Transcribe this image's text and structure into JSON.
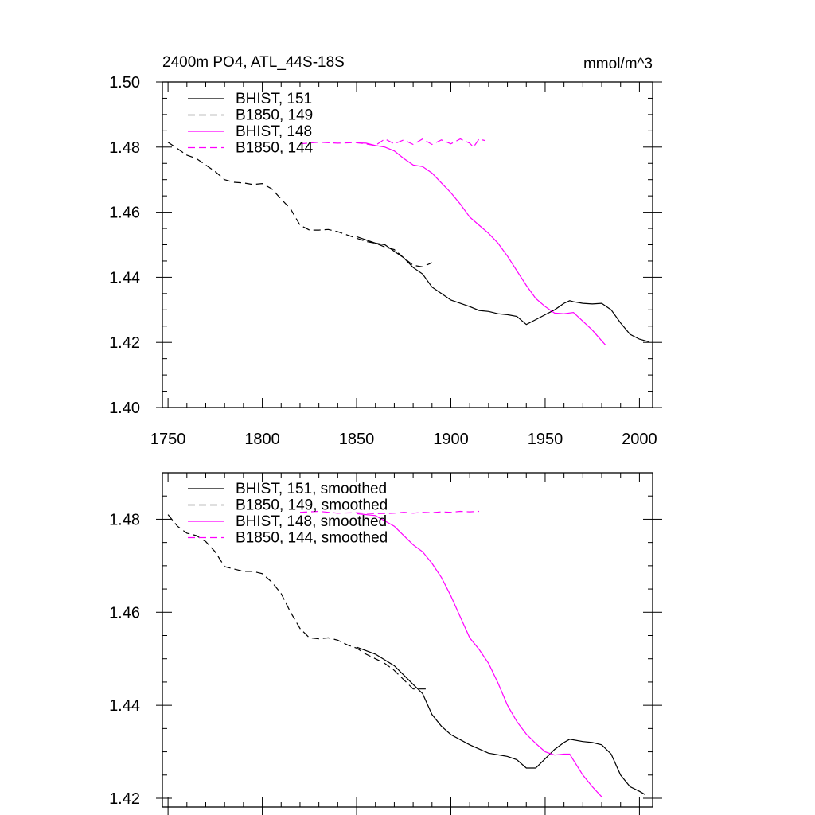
{
  "chart_data": [
    {
      "type": "line",
      "title": "2400m PO4, ATL_44S-18S",
      "units": "mmol/m^3",
      "xlim": [
        1747,
        2007
      ],
      "ylim": [
        1.4,
        1.5
      ],
      "x_ticks": [
        "1750",
        "1800",
        "1850",
        "1900",
        "1950",
        "2000"
      ],
      "y_ticks": [
        "1.40",
        "1.42",
        "1.44",
        "1.46",
        "1.48",
        "1.50"
      ],
      "legend_position": "top-left",
      "series": [
        {
          "name": "BHIST, 151",
          "color": "#000000",
          "dash": "solid",
          "x": [
            1850,
            1855,
            1860,
            1865,
            1870,
            1875,
            1880,
            1885,
            1890,
            1895,
            1900,
            1905,
            1910,
            1915,
            1920,
            1925,
            1930,
            1935,
            1940,
            1945,
            1950,
            1955,
            1960,
            1963,
            1965,
            1970,
            1975,
            1980,
            1985,
            1990,
            1995,
            2000,
            2005
          ],
          "y": [
            1.4525,
            1.4515,
            1.4505,
            1.45,
            1.448,
            1.446,
            1.443,
            1.441,
            1.437,
            1.435,
            1.433,
            1.432,
            1.431,
            1.4298,
            1.4295,
            1.4288,
            1.4285,
            1.428,
            1.4255,
            1.427,
            1.4285,
            1.43,
            1.432,
            1.4328,
            1.4325,
            1.432,
            1.4318,
            1.432,
            1.43,
            1.426,
            1.4225,
            1.421,
            1.4202
          ]
        },
        {
          "name": "B1850, 149",
          "color": "#000000",
          "dash": "dashed",
          "x": [
            1750,
            1755,
            1760,
            1765,
            1770,
            1775,
            1780,
            1785,
            1790,
            1795,
            1800,
            1805,
            1810,
            1815,
            1820,
            1825,
            1830,
            1835,
            1840,
            1845,
            1850,
            1855,
            1860,
            1865,
            1870,
            1875,
            1880,
            1885,
            1890
          ],
          "y": [
            1.4815,
            1.4795,
            1.4775,
            1.4765,
            1.4745,
            1.4725,
            1.47,
            1.4692,
            1.469,
            1.4685,
            1.4688,
            1.4672,
            1.464,
            1.461,
            1.456,
            1.4545,
            1.4545,
            1.4547,
            1.454,
            1.453,
            1.452,
            1.451,
            1.4505,
            1.4493,
            1.4485,
            1.446,
            1.4437,
            1.4432,
            1.4445
          ]
        },
        {
          "name": "BHIST, 148",
          "color": "#ff00ff",
          "dash": "solid",
          "x": [
            1850,
            1855,
            1860,
            1865,
            1870,
            1875,
            1880,
            1885,
            1890,
            1895,
            1900,
            1905,
            1910,
            1915,
            1920,
            1925,
            1930,
            1935,
            1940,
            1945,
            1950,
            1955,
            1960,
            1965,
            1970,
            1975,
            1980,
            1982
          ],
          "y": [
            1.4813,
            1.4812,
            1.4805,
            1.48,
            1.4788,
            1.4765,
            1.4745,
            1.474,
            1.472,
            1.469,
            1.466,
            1.4625,
            1.4585,
            1.456,
            1.4535,
            1.4505,
            1.4465,
            1.442,
            1.4375,
            1.4335,
            1.431,
            1.429,
            1.4288,
            1.4292,
            1.4265,
            1.4238,
            1.4205,
            1.4192
          ]
        },
        {
          "name": "B1850, 144",
          "color": "#ff00ff",
          "dash": "dashed",
          "x": [
            1820,
            1830,
            1840,
            1850,
            1860,
            1865,
            1870,
            1875,
            1880,
            1885,
            1890,
            1895,
            1900,
            1905,
            1910,
            1912,
            1915,
            1918
          ],
          "y": [
            1.481,
            1.4815,
            1.4812,
            1.4814,
            1.4805,
            1.4825,
            1.481,
            1.4822,
            1.4808,
            1.4825,
            1.4808,
            1.4822,
            1.481,
            1.4825,
            1.4812,
            1.48,
            1.4825,
            1.482
          ]
        }
      ]
    },
    {
      "type": "line",
      "xlim": [
        1747,
        2007
      ],
      "ylim": [
        1.42,
        1.49
      ],
      "y_ticks": [
        "1.42",
        "1.44",
        "1.46",
        "1.48"
      ],
      "legend_position": "top-left",
      "series": [
        {
          "name": "BHIST, 151, smoothed",
          "color": "#000000",
          "dash": "solid",
          "x": [
            1850,
            1860,
            1870,
            1875,
            1880,
            1885,
            1890,
            1895,
            1900,
            1910,
            1920,
            1930,
            1935,
            1940,
            1945,
            1950,
            1955,
            1960,
            1963,
            1970,
            1975,
            1980,
            1985,
            1990,
            1995,
            2000,
            2003
          ],
          "y": [
            1.4525,
            1.451,
            1.4485,
            1.4465,
            1.4445,
            1.4425,
            1.438,
            1.4355,
            1.4337,
            1.4315,
            1.4297,
            1.429,
            1.4283,
            1.4265,
            1.4265,
            1.4285,
            1.4305,
            1.432,
            1.4327,
            1.4322,
            1.432,
            1.4315,
            1.4295,
            1.425,
            1.4225,
            1.4215,
            1.4208
          ]
        },
        {
          "name": "B1850, 149, smoothed",
          "color": "#000000",
          "dash": "dashed",
          "x": [
            1750,
            1755,
            1760,
            1765,
            1770,
            1775,
            1780,
            1790,
            1795,
            1800,
            1805,
            1810,
            1815,
            1820,
            1825,
            1830,
            1835,
            1840,
            1845,
            1850,
            1855,
            1860,
            1865,
            1870,
            1875,
            1880,
            1885,
            1888
          ],
          "y": [
            1.481,
            1.4785,
            1.477,
            1.4765,
            1.4752,
            1.473,
            1.4698,
            1.4688,
            1.4688,
            1.4683,
            1.4665,
            1.464,
            1.46,
            1.4565,
            1.4545,
            1.4543,
            1.4545,
            1.454,
            1.453,
            1.4523,
            1.451,
            1.45,
            1.449,
            1.4475,
            1.4455,
            1.4435,
            1.4435,
            1.4435
          ]
        },
        {
          "name": "BHIST, 148, smoothed",
          "color": "#ff00ff",
          "dash": "solid",
          "x": [
            1850,
            1860,
            1870,
            1875,
            1880,
            1885,
            1890,
            1895,
            1900,
            1905,
            1910,
            1915,
            1920,
            1925,
            1930,
            1935,
            1940,
            1945,
            1950,
            1955,
            1960,
            1963,
            1965,
            1970,
            1975,
            1980
          ],
          "y": [
            1.4812,
            1.4808,
            1.4785,
            1.4765,
            1.4745,
            1.473,
            1.4705,
            1.4675,
            1.4635,
            1.459,
            1.4545,
            1.452,
            1.449,
            1.4448,
            1.44,
            1.4365,
            1.4338,
            1.4318,
            1.43,
            1.4293,
            1.4295,
            1.4295,
            1.4282,
            1.425,
            1.4225,
            1.4203
          ]
        },
        {
          "name": "B1850, 144, smoothed",
          "color": "#ff00ff",
          "dash": "dashed",
          "x": [
            1820,
            1830,
            1840,
            1850,
            1860,
            1870,
            1875,
            1880,
            1885,
            1890,
            1895,
            1900,
            1905,
            1910,
            1915
          ],
          "y": [
            1.4815,
            1.4817,
            1.4813,
            1.4814,
            1.4812,
            1.4813,
            1.4815,
            1.4813,
            1.4815,
            1.4814,
            1.4816,
            1.4815,
            1.4817,
            1.4816,
            1.4817
          ]
        }
      ]
    }
  ]
}
